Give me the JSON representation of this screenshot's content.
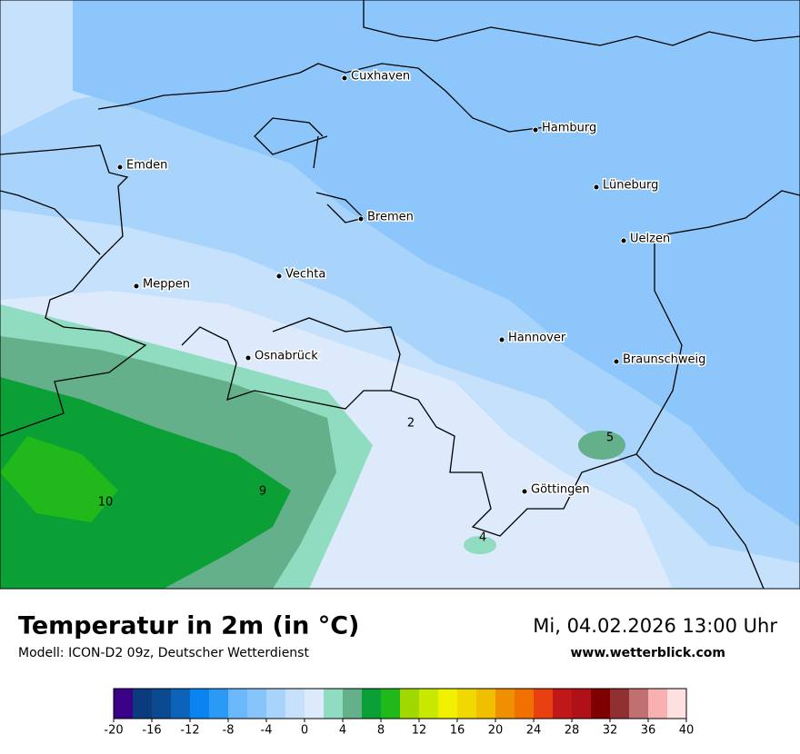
{
  "header": {
    "title": "Temperatur in 2m (in °C)",
    "model": "Modell: ICON-D2 09z, Deutscher Wetterdienst",
    "datetime": "Mi, 04.02.2026 13:00 Uhr",
    "website": "www.wetterblick.com"
  },
  "map": {
    "cities": [
      "Cuxhaven",
      "Hamburg",
      "Emden",
      "Lüneburg",
      "Bremen",
      "Uelzen",
      "Vechta",
      "Meppen",
      "Hannover",
      "Osnabrück",
      "Braunschweig",
      "Göttingen"
    ],
    "contour_labels": [
      2,
      5,
      9,
      10,
      4
    ]
  },
  "legend": {
    "levels": [
      -20,
      -18,
      -16,
      -14,
      -12,
      -10,
      -8,
      -6,
      -4,
      -2,
      0,
      2,
      4,
      6,
      8,
      10,
      12,
      14,
      16,
      18,
      20,
      22,
      24,
      26,
      28,
      30,
      32,
      34,
      36,
      38,
      40
    ],
    "colors": [
      "#3a0086",
      "#0c3a7e",
      "#0a4a90",
      "#0c63b8",
      "#0a84f0",
      "#2a9af5",
      "#6ab8fa",
      "#86c4fa",
      "#a8d4fb",
      "#c6e1fb",
      "#dceafb",
      "#90dcc0",
      "#64b08a",
      "#0aa035",
      "#20b81a",
      "#a0d800",
      "#c8e800",
      "#f0f000",
      "#f0d800",
      "#f0c000",
      "#f09000",
      "#f07000",
      "#e84010",
      "#c01818",
      "#b01018",
      "#800000",
      "#903030",
      "#c07070",
      "#f8b0b0",
      "#ffe0e0"
    ],
    "ticks": [
      -20,
      -16,
      -12,
      -8,
      -4,
      0,
      4,
      8,
      12,
      16,
      20,
      24,
      28,
      32,
      36,
      40
    ]
  }
}
